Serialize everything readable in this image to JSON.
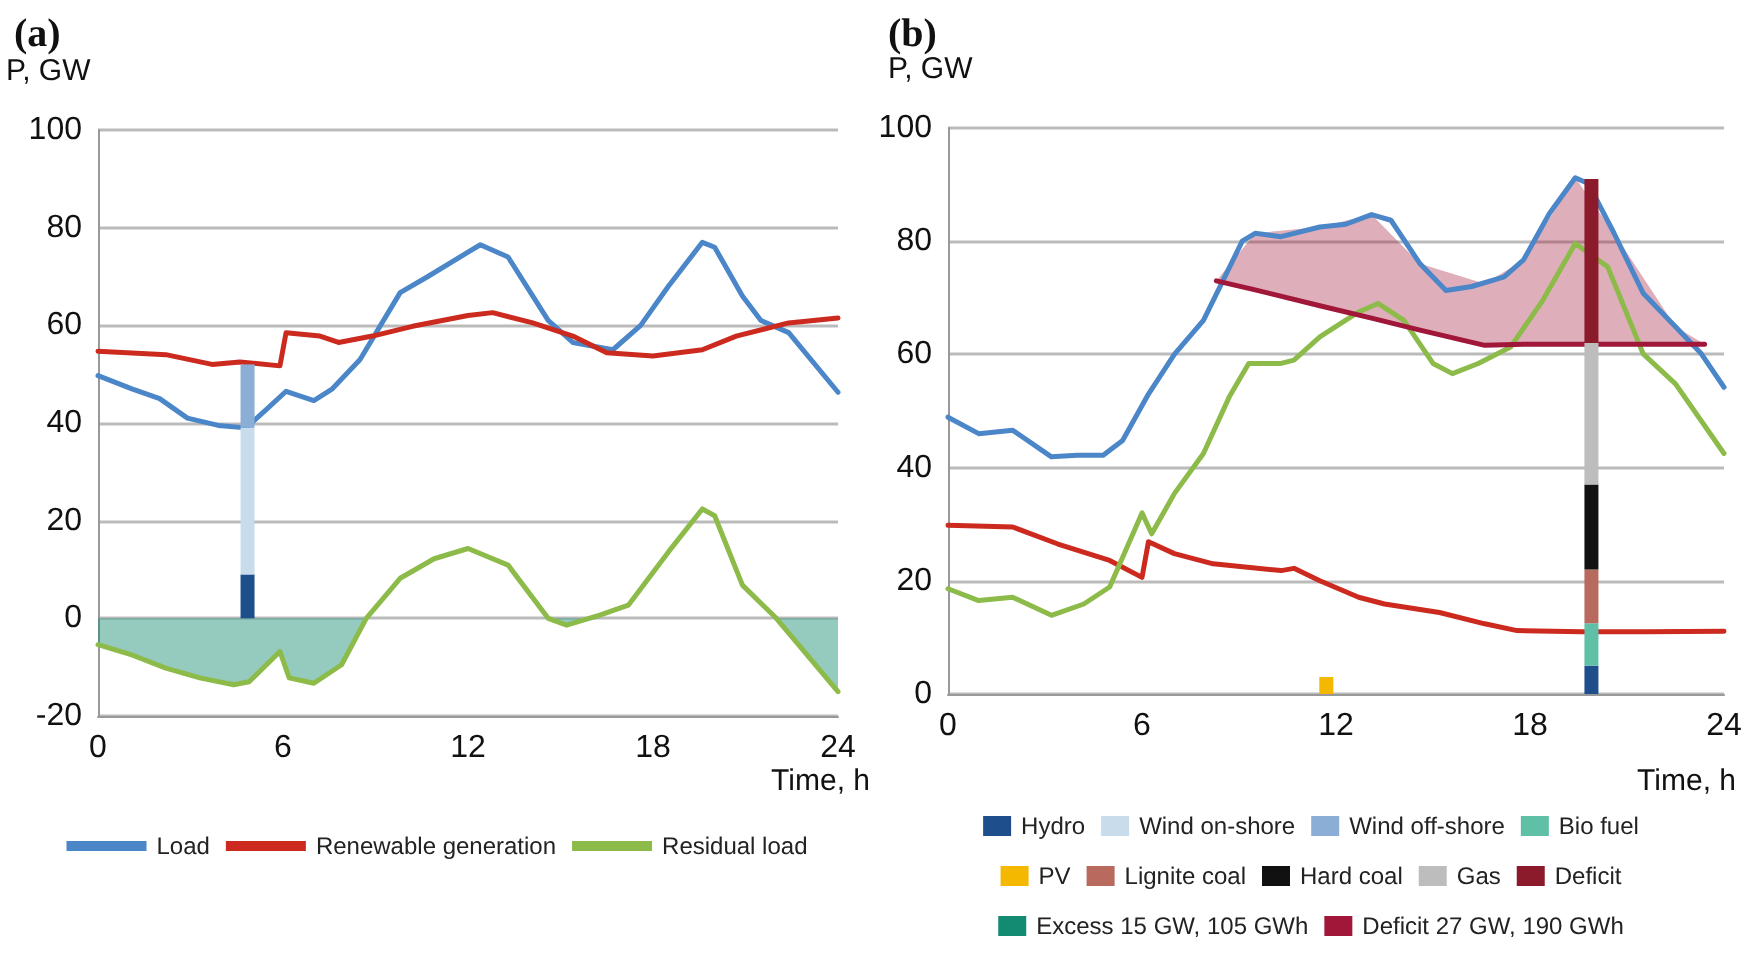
{
  "chart_data": [
    {
      "type": "line",
      "title": "(a)",
      "ylabel": "P, GW",
      "xlabel": "Time, h",
      "xlim": [
        0,
        24
      ],
      "ylim": [
        -20,
        100
      ],
      "xticks": [
        0,
        6,
        12,
        18,
        24
      ],
      "yticks": [
        -20,
        0,
        20,
        40,
        60,
        80,
        100
      ],
      "grid": "y",
      "legend": "bottom",
      "marker": "none",
      "line_style": "solid",
      "stacked": true,
      "series": [
        {
          "name": "Load",
          "color": "#4a86c8",
          "x": [
            0,
            1.1,
            2,
            2.9,
            3.9,
            4.8,
            5.5,
            6.1,
            7,
            7.6,
            8.5,
            9.8,
            10.7,
            12,
            12.4,
            13.3,
            14.6,
            15.4,
            16.7,
            17.6,
            18.5,
            19.6,
            20,
            20.9,
            21.5,
            22.4,
            24
          ],
          "values": [
            49.7,
            47,
            45,
            41,
            39.5,
            39,
            43,
            46.5,
            44.6,
            47,
            53,
            66.7,
            70,
            75,
            76.5,
            74,
            61,
            56.5,
            55,
            60,
            68,
            77,
            76,
            66,
            61,
            58.5,
            46.3
          ]
        },
        {
          "name": "Renewable generation",
          "color": "#cc2a1e",
          "x": [
            0,
            2.2,
            3.7,
            4.6,
            5.9,
            6.1,
            7.2,
            7.8,
            8.9,
            10.2,
            12,
            12.8,
            14.1,
            15.4,
            16.5,
            18,
            19.6,
            20.7,
            22.4,
            24
          ],
          "values": [
            54.7,
            54,
            52,
            52.5,
            51.7,
            58.5,
            57.8,
            56.5,
            57.8,
            59.8,
            62,
            62.6,
            60.5,
            57.8,
            54.4,
            53.7,
            55,
            57.8,
            60.5,
            61.5
          ]
        },
        {
          "name": "Residual load",
          "color": "#8dbb4a",
          "x": [
            0,
            1.1,
            2.2,
            3.3,
            4.4,
            4.9,
            5.9,
            6.2,
            7,
            7.9,
            8.7,
            9.8,
            10.9,
            12,
            13.3,
            14.6,
            15.2,
            16.3,
            17.2,
            18.5,
            19.6,
            20,
            20.9,
            22,
            24
          ],
          "values": [
            -5.4,
            -7.5,
            -10.2,
            -12.2,
            -13.6,
            -13,
            -6.8,
            -12.2,
            -13.3,
            -9.5,
            0,
            8.2,
            12.2,
            14.3,
            10.9,
            0,
            -1.4,
            0.7,
            2.7,
            13.6,
            22.4,
            21,
            6.8,
            0,
            -15
          ]
        },
        {
          "type": "area",
          "color": "#138a72",
          "x": [
            0,
            1.1,
            2.2,
            3.3,
            4.4,
            4.9,
            5.9,
            6.2,
            7,
            7.9,
            8.7,
            12,
            14.6,
            15.2,
            16.3,
            19.6,
            22,
            24
          ],
          "values": [
            -5.4,
            -7.5,
            -10.2,
            -12.2,
            -13.6,
            -13,
            -6.8,
            -12.2,
            -13.3,
            -9.5,
            0,
            null,
            0,
            -1.4,
            0,
            null,
            0,
            -15
          ]
        },
        {
          "type": "bar",
          "color": "#1f4e8c",
          "x": [
            4.85
          ],
          "values": [
            9
          ]
        },
        {
          "type": "bar",
          "color": "#c9dcec",
          "x": [
            4.85
          ],
          "values": [
            30
          ]
        },
        {
          "type": "bar",
          "color": "#8aaed6",
          "x": [
            4.85
          ],
          "values": [
            13
          ]
        }
      ]
    },
    {
      "type": "line",
      "title": "(b)",
      "ylabel": "P, GW",
      "xlabel": "Time, h",
      "xlim": [
        0,
        24
      ],
      "ylim": [
        0,
        100
      ],
      "xticks": [
        0,
        6,
        12,
        18,
        24
      ],
      "yticks": [
        0,
        20,
        40,
        60,
        80,
        100
      ],
      "grid": "y",
      "legend": "bottom",
      "marker": "none",
      "line_style": "solid",
      "stacked": true,
      "x": [
        11.7,
        19.9
      ],
      "series": [
        {
          "color": "#4a86c8",
          "x": [
            0,
            0.95,
            2,
            3.2,
            4,
            4.8,
            5.4,
            6.2,
            7,
            7.9,
            8.5,
            9.1,
            9.5,
            10.3,
            11.5,
            12.3,
            13.1,
            13.7,
            14.6,
            15.4,
            16.2,
            17.2,
            17.8,
            18.6,
            19.4,
            19.8,
            20.6,
            21.5,
            22.5,
            23.3,
            24
          ],
          "values": [
            48.9,
            46,
            46.6,
            41.9,
            42.2,
            42.2,
            44.8,
            53,
            60,
            66,
            73,
            80,
            81.4,
            80.8,
            82.5,
            83,
            84.7,
            83.7,
            76,
            71.3,
            72,
            73.7,
            76.7,
            84.9,
            91.2,
            90.2,
            81.4,
            70.8,
            64.9,
            60.1,
            54.2
          ]
        },
        {
          "color": "#cc2a1e",
          "x": [
            0,
            2,
            3.4,
            5,
            6,
            6.2,
            7,
            8.2,
            10.3,
            10.7,
            11.5,
            12.7,
            13.5,
            15.2,
            16.6,
            17.6,
            19.6,
            21.6,
            24
          ],
          "values": [
            29.8,
            29.5,
            26.5,
            23.6,
            20.6,
            26.9,
            24.8,
            23,
            21.8,
            22.2,
            20,
            17.1,
            15.9,
            14.4,
            12.4,
            11.2,
            11,
            11,
            11.1
          ]
        },
        {
          "color": "#8dbb4a",
          "x": [
            0,
            0.95,
            2,
            3.2,
            4.2,
            5,
            6,
            6.3,
            7,
            7.9,
            8.7,
            9.3,
            10.3,
            10.7,
            11.5,
            12.7,
            13.3,
            14.1,
            15,
            15.6,
            16.4,
            17.4,
            18.4,
            19.4,
            20.4,
            21.5,
            22.5,
            24
          ],
          "values": [
            18.6,
            16.5,
            17.1,
            13.9,
            15.9,
            18.9,
            32,
            28.3,
            35.4,
            42.5,
            52.5,
            58.4,
            58.4,
            59,
            63.1,
            67.5,
            69,
            66,
            58.4,
            56.6,
            58.4,
            61.3,
            69.6,
            79.6,
            75.5,
            60.1,
            54.8,
            42.5
          ]
        },
        {
          "type": "bar",
          "name": "Hydro",
          "color": "#1f4e8c",
          "values": [
            null,
            5
          ]
        },
        {
          "type": "bar",
          "name": "Wind on-shore",
          "color": "#c9dcec",
          "values": [
            null,
            null
          ]
        },
        {
          "type": "bar",
          "name": "Wind off-shore",
          "color": "#8aaed6",
          "values": [
            null,
            null
          ]
        },
        {
          "type": "bar",
          "name": "Bio fuel",
          "color": "#5fbfa7",
          "values": [
            null,
            7.5
          ]
        },
        {
          "type": "bar",
          "name": "PV",
          "color": "#f5b800",
          "values": [
            3,
            null
          ]
        },
        {
          "type": "bar",
          "name": "Lignite coal",
          "color": "#b86a5e",
          "values": [
            null,
            9.5
          ]
        },
        {
          "type": "bar",
          "name": "Hard coal",
          "color": "#111111",
          "values": [
            null,
            15
          ]
        },
        {
          "type": "bar",
          "name": "Gas",
          "color": "#bdbdbd",
          "values": [
            null,
            25
          ]
        },
        {
          "type": "bar",
          "name": "Deficit",
          "color": "#8b1a2b",
          "values": [
            null,
            29
          ]
        },
        {
          "type": "area",
          "name": "Excess 15 GW, 105 GWh",
          "color": "#138a72",
          "values": [
            null,
            null
          ]
        },
        {
          "type": "line",
          "name": "Deficit 27 GW, 190 GWh",
          "color": "#a0173a",
          "x": [
            8.3,
            9.5,
            11.5,
            13.1,
            14.6,
            16.6,
            17.8,
            19.4,
            20.6,
            22.5,
            23.4
          ],
          "values": [
            73,
            71.4,
            68.6,
            66.4,
            64.3,
            61.6,
            61.8,
            61.8,
            61.8,
            61.8,
            61.8
          ],
          "lower": [
            73,
            71.4,
            68.6,
            66.4,
            64.3,
            61.6,
            61.8,
            61.8,
            61.8,
            61.8,
            61.8
          ],
          "upper": [
            73,
            81.4,
            82.5,
            84.7,
            76,
            72.5,
            76.7,
            91.2,
            81.4,
            64.9,
            61.8
          ]
        }
      ]
    }
  ]
}
